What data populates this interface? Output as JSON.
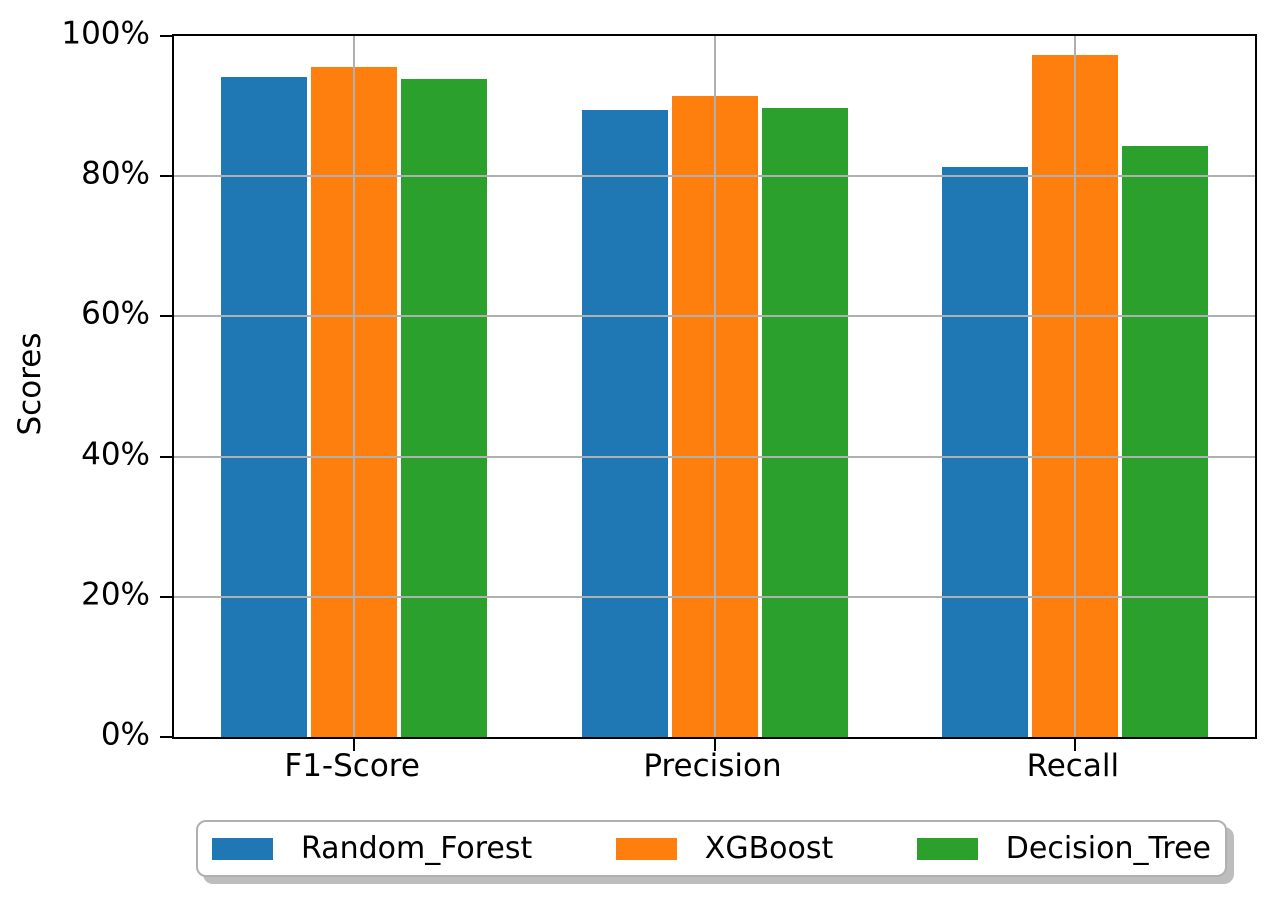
{
  "chart_data": {
    "type": "bar",
    "title": "",
    "categories": [
      "F1-Score",
      "Precision",
      "Recall"
    ],
    "series": [
      {
        "name": "Random_Forest",
        "color": "#1f77b4",
        "values": [
          94.4,
          89.8,
          81.6
        ]
      },
      {
        "name": "XGBoost",
        "color": "#ff7f0e",
        "values": [
          95.8,
          91.7,
          97.6
        ]
      },
      {
        "name": "Decision_Tree",
        "color": "#2ca02c",
        "values": [
          94.2,
          90.0,
          84.6
        ]
      }
    ],
    "xlabel": "",
    "ylabel": "Scores",
    "ylim": [
      0,
      100
    ],
    "yticks": [
      0,
      20,
      40,
      60,
      80,
      100
    ],
    "ytick_labels": [
      "0%",
      "20%",
      "40%",
      "60%",
      "80%",
      "100%"
    ],
    "grid": true,
    "grid_color": "#b0b0b0",
    "axis_color": "#000000",
    "legend_position": "bottom"
  }
}
